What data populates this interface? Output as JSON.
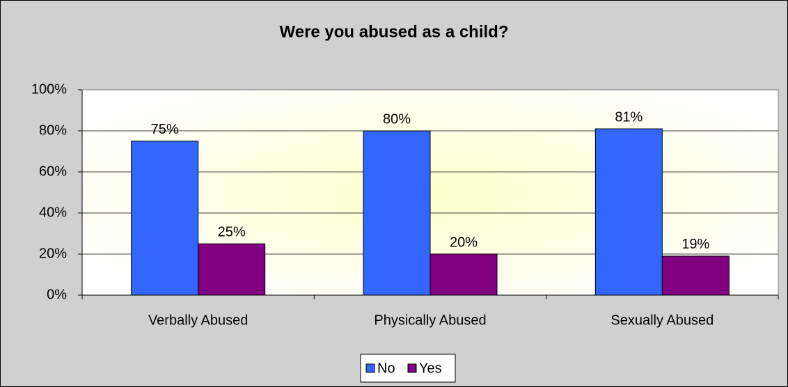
{
  "chart_data": {
    "type": "bar",
    "title": "Were you abused as a child?",
    "categories": [
      "Verbally Abused",
      "Physically Abused",
      "Sexually Abused"
    ],
    "series": [
      {
        "name": "No",
        "color": "#3366ff",
        "values": [
          75,
          80,
          81
        ],
        "value_labels": [
          "75%",
          "80%",
          "81%"
        ]
      },
      {
        "name": "Yes",
        "color": "#800080",
        "values": [
          25,
          20,
          19
        ],
        "value_labels": [
          "25%",
          "20%",
          "19%"
        ]
      }
    ],
    "ylim": [
      0,
      100
    ],
    "yticks": [
      {
        "value": 0,
        "label": "0%"
      },
      {
        "value": 20,
        "label": "20%"
      },
      {
        "value": 40,
        "label": "40%"
      },
      {
        "value": 60,
        "label": "60%"
      },
      {
        "value": 80,
        "label": "80%"
      },
      {
        "value": 100,
        "label": "100%"
      }
    ],
    "grid": true,
    "legend": "bottom"
  }
}
